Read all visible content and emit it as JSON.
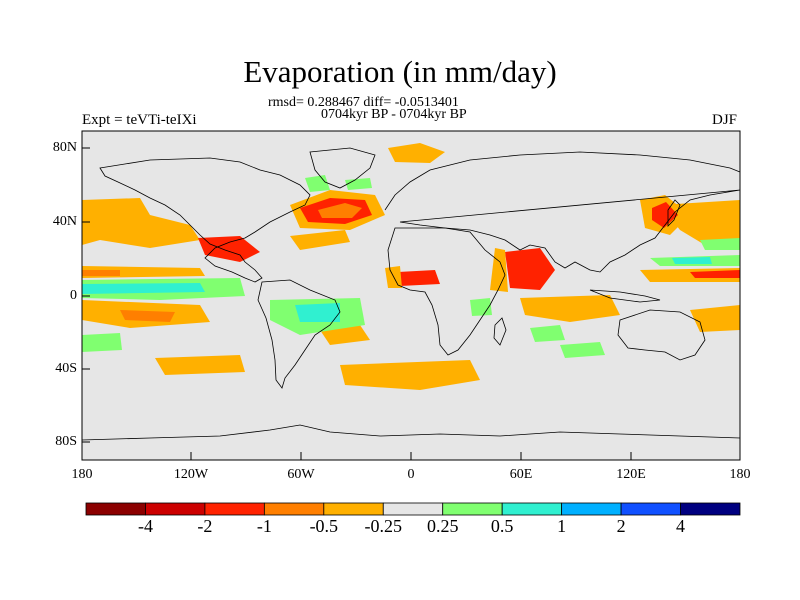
{
  "title": "Evaporation (in mm/day)",
  "stats": "rmsd= 0.288467 diff= -0.0513401",
  "period": "0704kyr BP - 0704kyr BP",
  "expt_label": "Expt = teVTi-teIXi",
  "season": "DJF",
  "lat_labels": [
    "80N",
    "40N",
    "0",
    "40S",
    "80S"
  ],
  "lon_labels": [
    "180",
    "120W",
    "60W",
    "0",
    "60E",
    "120E",
    "180"
  ],
  "colorbar": {
    "colors": [
      "#8b0000",
      "#cc0000",
      "#ff2200",
      "#ff7f00",
      "#ffb000",
      "#e6e6e6",
      "#80ff70",
      "#30f0d0",
      "#00b0ff",
      "#1050ff",
      "#000080"
    ],
    "labels": [
      "-4",
      "-2",
      "-1",
      "-0.5",
      "-0.25",
      "0.25",
      "0.5",
      "1",
      "2",
      "4"
    ]
  },
  "map_colors": {
    "background": "#e6e6e6",
    "coastline": "#000000"
  }
}
